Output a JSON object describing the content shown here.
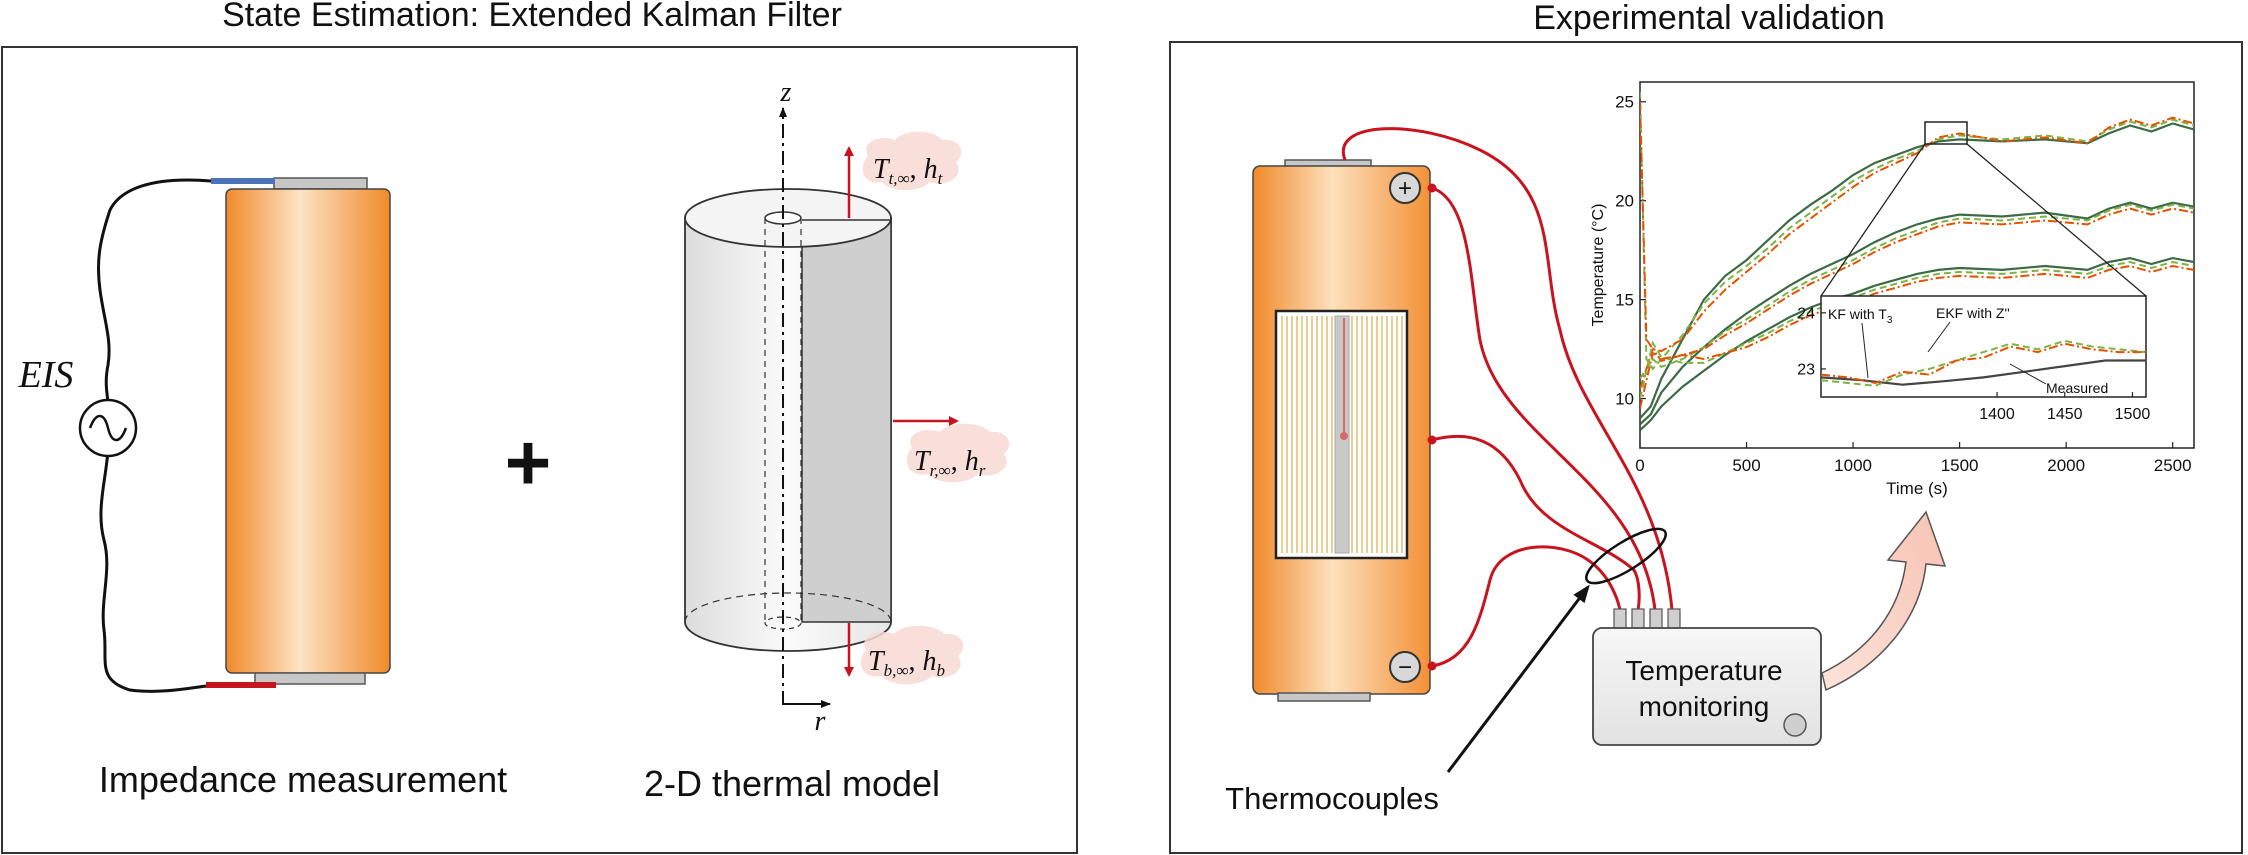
{
  "left_panel": {
    "title": "State Estimation: Extended Kalman Filter",
    "eis_label": "EIS",
    "plus_sign": "+",
    "impedance_caption": "Impedance measurement",
    "thermal_caption": "2-D thermal model",
    "axis_z": "z",
    "axis_r": "r",
    "bc_top": "Tₜ,∞, hₜ",
    "bc_top_main": "T",
    "bc_top_sub": "t,∞",
    "bc_top_h": "h",
    "bc_top_hsub": "t",
    "bc_side_main": "T",
    "bc_side_sub": "r,∞",
    "bc_side_h": "h",
    "bc_side_hsub": "r",
    "bc_bottom_main": "T",
    "bc_bottom_sub": "b,∞",
    "bc_bottom_h": "h",
    "bc_bottom_hsub": "b"
  },
  "right_panel": {
    "title": "Experimental validation",
    "terminal_pos": "+",
    "terminal_neg": "−",
    "monitor_line1": "Temperature",
    "monitor_line2": "monitoring",
    "thermocouples_label": "Thermocouples"
  },
  "colors": {
    "wire_red": "#c8141e",
    "battery_orange": "#f09a3e",
    "panel_border": "#333333",
    "model_line": "#2f6b3a",
    "kf_line": "#7cb342",
    "ekf_line": "#e65100"
  },
  "chart_data": {
    "type": "line",
    "xlabel": "Time (s)",
    "ylabel": "Temperature (°C)",
    "xlim": [
      0,
      2600
    ],
    "ylim": [
      7.5,
      26
    ],
    "xticks": [
      0,
      500,
      1000,
      1500,
      2000,
      2500
    ],
    "yticks": [
      10,
      15,
      20,
      25
    ],
    "series": [
      {
        "name": "Measured",
        "style": "solid",
        "color": "#3d6b45",
        "x": [
          0,
          50,
          100,
          200,
          300,
          400,
          500,
          600,
          700,
          800,
          900,
          1000,
          1100,
          1200,
          1300,
          1400,
          1500,
          1700,
          1900,
          2100,
          2200,
          2300,
          2400,
          2500,
          2600
        ],
        "y": [
          9,
          9.6,
          11,
          13,
          15,
          16.2,
          17,
          18,
          19,
          19.8,
          20.5,
          21.3,
          21.9,
          22.3,
          22.7,
          23.0,
          23.1,
          23.0,
          23.1,
          22.9,
          23.4,
          23.8,
          23.5,
          23.9,
          23.6
        ]
      },
      {
        "name": "Measured",
        "style": "solid",
        "color": "#3d6b45",
        "x": [
          0,
          50,
          100,
          200,
          300,
          400,
          500,
          600,
          700,
          800,
          900,
          1000,
          1100,
          1200,
          1300,
          1400,
          1500,
          1700,
          1900,
          2100,
          2200,
          2300,
          2400,
          2500,
          2600
        ],
        "y": [
          8.7,
          9.2,
          10.3,
          11.6,
          12.6,
          13.5,
          14.3,
          15.0,
          15.7,
          16.3,
          16.8,
          17.3,
          17.9,
          18.4,
          18.8,
          19.1,
          19.3,
          19.2,
          19.4,
          19.1,
          19.6,
          19.9,
          19.6,
          19.9,
          19.7
        ]
      },
      {
        "name": "Measured",
        "style": "solid",
        "color": "#3d6b45",
        "x": [
          0,
          50,
          100,
          200,
          300,
          400,
          500,
          600,
          700,
          800,
          900,
          1000,
          1100,
          1200,
          1300,
          1400,
          1500,
          1700,
          1900,
          2100,
          2200,
          2300,
          2400,
          2500,
          2600
        ],
        "y": [
          8.4,
          8.9,
          9.6,
          10.6,
          11.4,
          12.2,
          12.9,
          13.5,
          14.1,
          14.6,
          15.0,
          15.3,
          15.7,
          16.0,
          16.3,
          16.5,
          16.6,
          16.5,
          16.7,
          16.5,
          16.9,
          17.1,
          16.8,
          17.1,
          16.9
        ]
      },
      {
        "name": "KF with T3",
        "style": "dashed",
        "color": "#7cb342",
        "x": [
          0,
          30,
          60,
          100,
          200,
          300,
          400,
          500,
          600,
          700,
          800,
          900,
          1000,
          1100,
          1200,
          1300,
          1400,
          1500,
          1700,
          1900,
          2100,
          2200,
          2300,
          2400,
          2500,
          2600
        ],
        "y": [
          25.5,
          12,
          11.5,
          12,
          13.2,
          14.8,
          15.9,
          16.7,
          17.6,
          18.6,
          19.4,
          20.2,
          21.0,
          21.6,
          22.1,
          22.5,
          23.1,
          23.3,
          23.1,
          23.3,
          23.0,
          23.6,
          24.0,
          23.7,
          24.1,
          23.8
        ]
      },
      {
        "name": "EKF with Z''",
        "style": "dashdot",
        "color": "#e65100",
        "x": [
          0,
          30,
          60,
          100,
          200,
          300,
          400,
          500,
          600,
          700,
          800,
          900,
          1000,
          1100,
          1200,
          1300,
          1400,
          1500,
          1700,
          1900,
          2100,
          2200,
          2300,
          2400,
          2500,
          2600
        ],
        "y": [
          25,
          13,
          12.5,
          12.4,
          13.0,
          14.4,
          15.5,
          16.4,
          17.3,
          18.3,
          19.1,
          19.9,
          20.7,
          21.4,
          21.9,
          22.4,
          23.2,
          23.4,
          23.0,
          23.2,
          22.9,
          23.7,
          24.1,
          23.8,
          24.2,
          23.9
        ]
      },
      {
        "name": "KF with T3",
        "style": "dashed",
        "color": "#7cb342",
        "x": [
          0,
          60,
          100,
          200,
          300,
          400,
          500,
          600,
          700,
          800,
          900,
          1000,
          1100,
          1200,
          1300,
          1400,
          1500,
          1700,
          1900,
          2100,
          2200,
          2300,
          2400,
          2500,
          2600
        ],
        "y": [
          11,
          12,
          11.6,
          12.0,
          12.6,
          13.4,
          14.0,
          14.7,
          15.4,
          16.0,
          16.5,
          17.0,
          17.6,
          18.1,
          18.5,
          18.9,
          19.1,
          19.0,
          19.2,
          19.0,
          19.5,
          19.8,
          19.5,
          19.8,
          19.6
        ]
      },
      {
        "name": "EKF with Z''",
        "style": "dashdot",
        "color": "#e65100",
        "x": [
          0,
          60,
          100,
          200,
          300,
          400,
          500,
          600,
          700,
          800,
          900,
          1000,
          1100,
          1200,
          1300,
          1400,
          1500,
          1700,
          1900,
          2100,
          2200,
          2300,
          2400,
          2500,
          2600
        ],
        "y": [
          10.5,
          12.5,
          11.9,
          12.2,
          12.5,
          13.2,
          13.8,
          14.5,
          15.2,
          15.8,
          16.3,
          16.8,
          17.4,
          17.9,
          18.3,
          18.7,
          18.9,
          18.8,
          19.0,
          18.8,
          19.3,
          19.6,
          19.3,
          19.6,
          19.4
        ]
      },
      {
        "name": "KF with T3",
        "style": "dashed",
        "color": "#7cb342",
        "x": [
          0,
          60,
          100,
          200,
          300,
          400,
          500,
          600,
          700,
          800,
          900,
          1000,
          1100,
          1200,
          1300,
          1400,
          1500,
          1700,
          1900,
          2100,
          2200,
          2300,
          2400,
          2500,
          2600
        ],
        "y": [
          10,
          12.8,
          12.1,
          11.8,
          11.8,
          12.3,
          12.8,
          13.3,
          13.9,
          14.4,
          14.8,
          15.1,
          15.5,
          15.8,
          16.1,
          16.3,
          16.4,
          16.3,
          16.5,
          16.3,
          16.7,
          16.9,
          16.6,
          16.9,
          16.7
        ]
      },
      {
        "name": "EKF with Z''",
        "style": "dashdot",
        "color": "#e65100",
        "x": [
          0,
          60,
          100,
          200,
          300,
          400,
          500,
          600,
          700,
          800,
          900,
          1000,
          1100,
          1200,
          1300,
          1400,
          1500,
          1700,
          1900,
          2100,
          2200,
          2300,
          2400,
          2500,
          2600
        ],
        "y": [
          9.5,
          12.3,
          12.0,
          12.2,
          12.0,
          12.3,
          12.6,
          13.1,
          13.7,
          14.2,
          14.6,
          14.9,
          15.3,
          15.6,
          15.9,
          16.1,
          16.2,
          16.1,
          16.3,
          16.1,
          16.5,
          16.7,
          16.4,
          16.7,
          16.5
        ]
      }
    ],
    "inset": {
      "xlim": [
        1270,
        1510
      ],
      "ylim": [
        22.5,
        24.3
      ],
      "xticks": [
        1400,
        1450,
        1500
      ],
      "yticks": [
        23,
        24
      ],
      "annotations": [
        "KF with T3",
        "EKF with Z''",
        "Measured"
      ],
      "series": [
        {
          "name": "Measured",
          "style": "solid",
          "color": "#444444",
          "x": [
            1270,
            1300,
            1330,
            1360,
            1390,
            1420,
            1450,
            1480,
            1510
          ],
          "y": [
            22.85,
            22.8,
            22.72,
            22.78,
            22.85,
            22.95,
            23.05,
            23.15,
            23.15
          ]
        },
        {
          "name": "KF with T3",
          "style": "dashed",
          "color": "#7cb342",
          "x": [
            1270,
            1290,
            1310,
            1330,
            1350,
            1370,
            1390,
            1410,
            1430,
            1450,
            1470,
            1490,
            1510
          ],
          "y": [
            22.8,
            22.75,
            22.7,
            22.9,
            23.0,
            23.15,
            23.3,
            23.45,
            23.35,
            23.5,
            23.4,
            23.35,
            23.3
          ]
        },
        {
          "name": "EKF with Z''",
          "style": "dashdot",
          "color": "#e65100",
          "x": [
            1270,
            1290,
            1310,
            1330,
            1350,
            1370,
            1390,
            1410,
            1430,
            1450,
            1470,
            1490,
            1510
          ],
          "y": [
            22.9,
            22.85,
            22.75,
            22.95,
            22.9,
            23.15,
            23.2,
            23.4,
            23.3,
            23.45,
            23.35,
            23.3,
            23.3
          ]
        }
      ]
    }
  }
}
